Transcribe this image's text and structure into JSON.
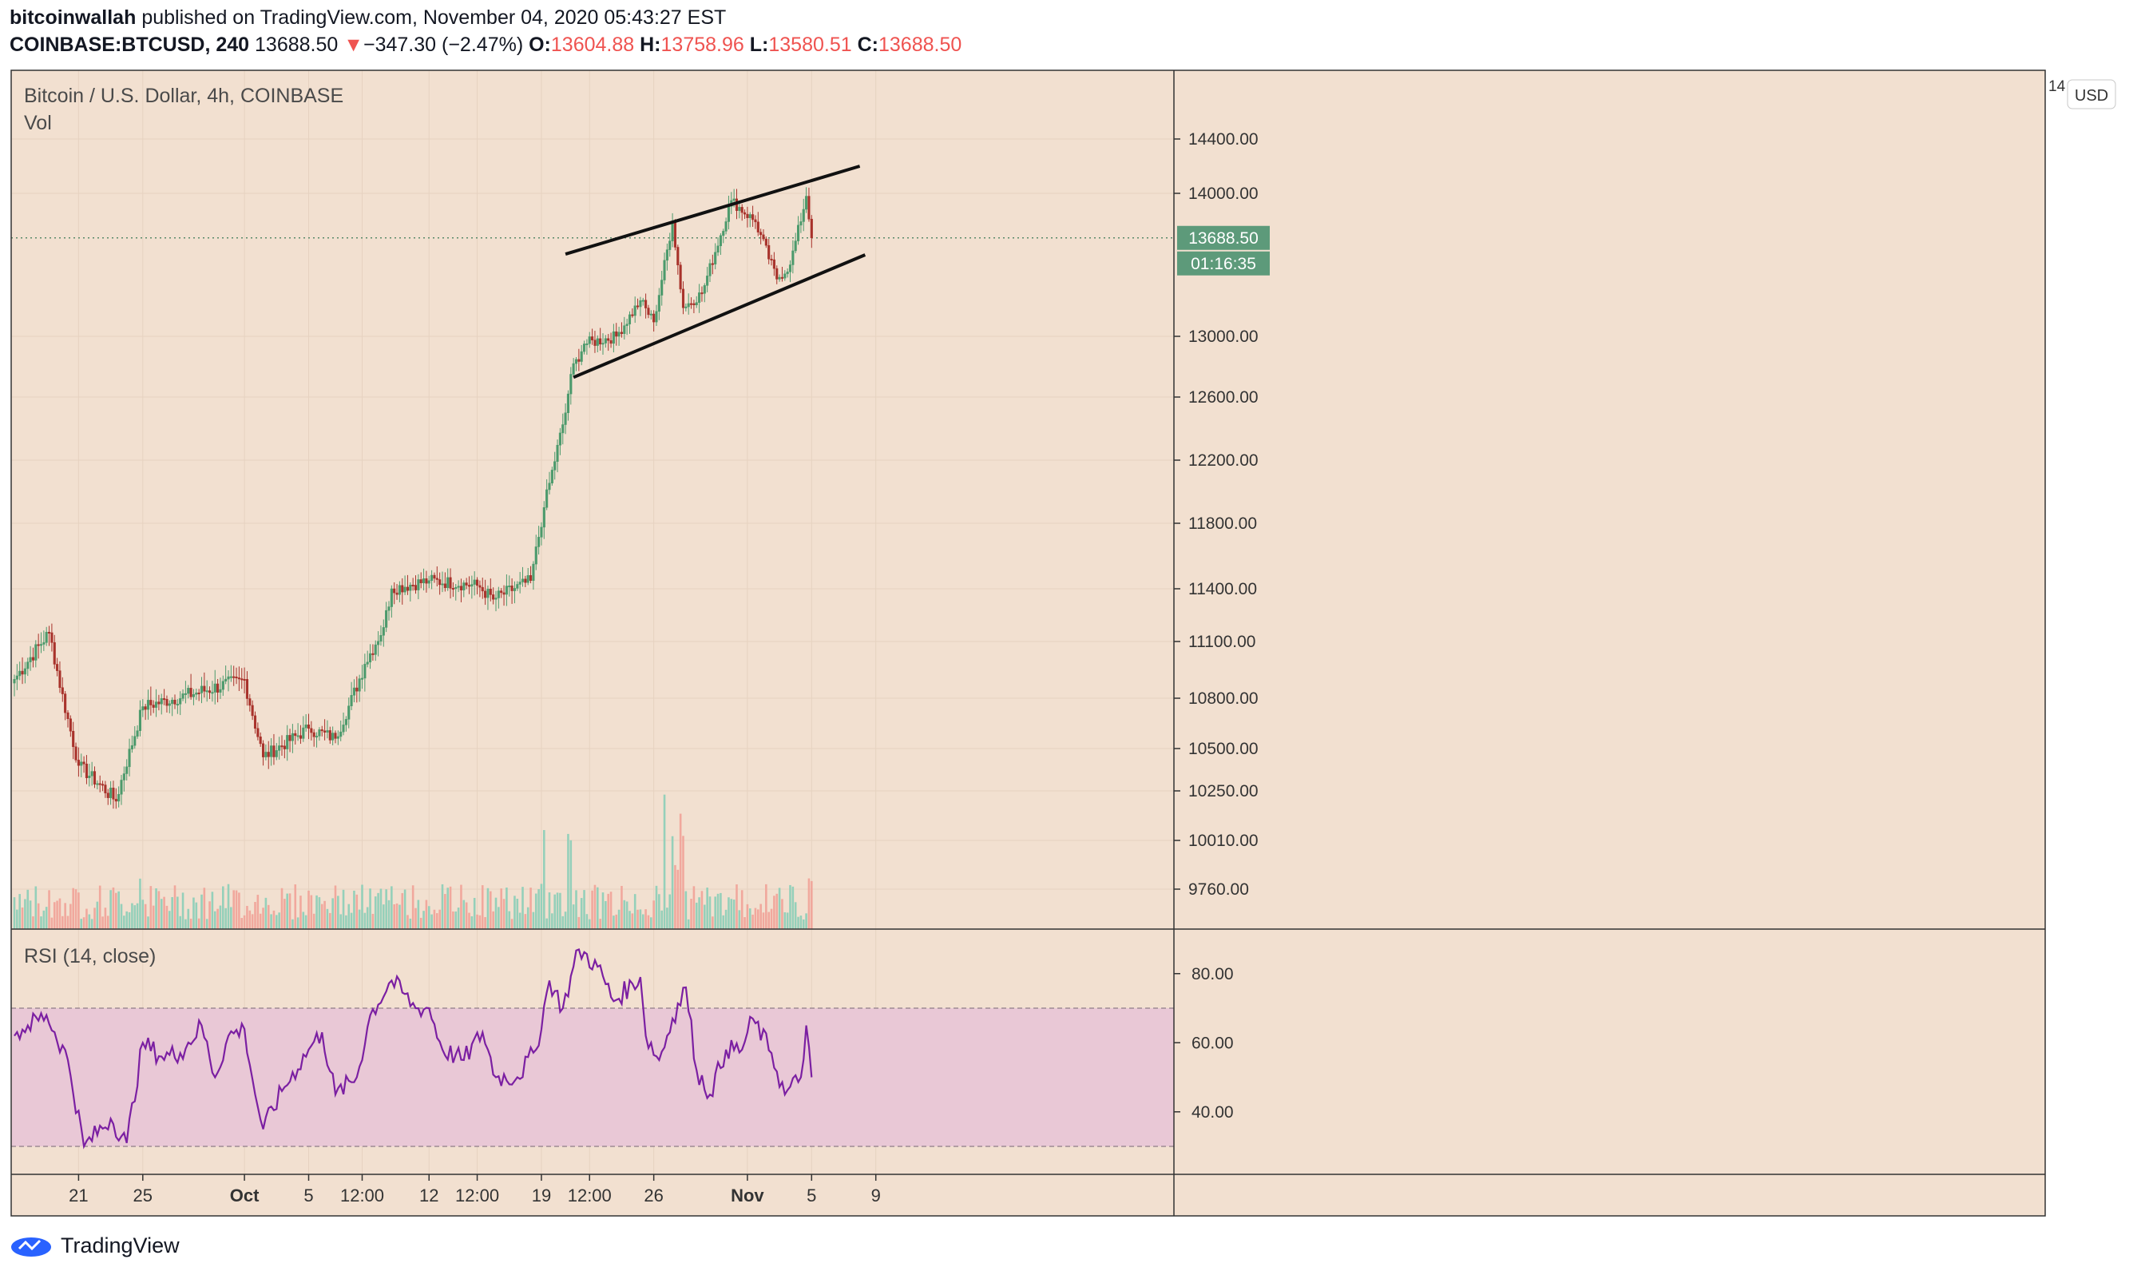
{
  "header": {
    "publisher": "bitcoinwallah",
    "published_text": "published on TradingView.com, November 04, 2020 05:43:27 EST",
    "symbol": "COINBASE:BTCUSD, 240",
    "price": "13688.50",
    "change_arrow": "▼",
    "change": "−347.30 (−2.47%)",
    "o_label": "O:",
    "o_value": "13604.88",
    "h_label": "H:",
    "h_value": "13758.96",
    "l_label": "L:",
    "l_value": "13580.51",
    "c_label": "C:",
    "c_value": "13688.50"
  },
  "footer": {
    "brand": "TradingView"
  },
  "colors": {
    "background": "#f2e0d0",
    "up": "#26a69a",
    "down": "#ef5350",
    "candle_up": "#4c9a6c",
    "candle_down": "#a8322b",
    "rsi_line": "#7b1fa2",
    "rsi_band": "#e9c8d6",
    "price_label": "#5d9a7a"
  },
  "chart_data": {
    "type": "candlestick",
    "title": "Bitcoin / U.S. Dollar, 4h, COINBASE",
    "subtitle": "Vol",
    "currency": "USD",
    "last_price_label": "13688.50",
    "countdown_label": "01:16:35",
    "y_ticks": [
      "14400.00",
      "14000.00",
      "13000.00",
      "12600.00",
      "12200.00",
      "11800.00",
      "11400.00",
      "11100.00",
      "10800.00",
      "10500.00",
      "10250.00",
      "10010.00",
      "9760.00"
    ],
    "y_tick_values": [
      14400,
      14000,
      13000,
      12600,
      12200,
      11800,
      11400,
      11100,
      10800,
      10500,
      10250,
      10010,
      9760
    ],
    "x_labels": [
      "21",
      "25",
      "Oct",
      "5",
      "12:00",
      "12",
      "12:00",
      "19",
      "12:00",
      "26",
      "Nov",
      "5",
      "9"
    ],
    "x_label_bars": [
      24,
      48,
      86,
      110,
      130,
      155,
      173,
      197,
      215,
      239,
      274,
      298,
      322
    ],
    "key_candles": [
      {
        "bar": 0,
        "price": 10900
      },
      {
        "bar": 13,
        "price": 11150
      },
      {
        "bar": 24,
        "price": 10400
      },
      {
        "bar": 38,
        "price": 10200
      },
      {
        "bar": 48,
        "price": 10750
      },
      {
        "bar": 86,
        "price": 10900
      },
      {
        "bar": 93,
        "price": 10450
      },
      {
        "bar": 110,
        "price": 10620
      },
      {
        "bar": 120,
        "price": 10560
      },
      {
        "bar": 131,
        "price": 10980
      },
      {
        "bar": 138,
        "price": 11180
      },
      {
        "bar": 141,
        "price": 11400
      },
      {
        "bar": 155,
        "price": 11450
      },
      {
        "bar": 173,
        "price": 11420
      },
      {
        "bar": 179,
        "price": 11340
      },
      {
        "bar": 193,
        "price": 11450
      },
      {
        "bar": 198,
        "price": 11900
      },
      {
        "bar": 206,
        "price": 12500
      },
      {
        "bar": 208,
        "price": 12750
      },
      {
        "bar": 213,
        "price": 12950
      },
      {
        "bar": 225,
        "price": 13000
      },
      {
        "bar": 234,
        "price": 13250
      },
      {
        "bar": 239,
        "price": 13100
      },
      {
        "bar": 246,
        "price": 13800
      },
      {
        "bar": 250,
        "price": 13200
      },
      {
        "bar": 257,
        "price": 13300
      },
      {
        "bar": 268,
        "price": 13950
      },
      {
        "bar": 277,
        "price": 13800
      },
      {
        "bar": 285,
        "price": 13400
      },
      {
        "bar": 290,
        "price": 13500
      },
      {
        "bar": 296,
        "price": 13980
      },
      {
        "bar": 298,
        "price": 13688.5
      }
    ],
    "last_bar": 298,
    "total_bars": 334,
    "trendlines": [
      {
        "name": "channel-upper",
        "from": {
          "bar": 206,
          "price": 13575
        },
        "to": {
          "bar": 316,
          "price": 14200
        }
      },
      {
        "name": "channel-lower",
        "from": {
          "bar": 209,
          "price": 12730
        },
        "to": {
          "bar": 318,
          "price": 13570
        }
      }
    ],
    "rsi": {
      "label": "RSI (14, close)",
      "y_ticks": [
        "80.00",
        "60.00",
        "40.00"
      ],
      "y_tick_values": [
        80,
        60,
        40
      ],
      "band": [
        30,
        70
      ],
      "keypoints": [
        {
          "bar": 0,
          "v": 62
        },
        {
          "bar": 5,
          "v": 65
        },
        {
          "bar": 12,
          "v": 68
        },
        {
          "bar": 20,
          "v": 55
        },
        {
          "bar": 26,
          "v": 30
        },
        {
          "bar": 36,
          "v": 38
        },
        {
          "bar": 42,
          "v": 31
        },
        {
          "bar": 48,
          "v": 60
        },
        {
          "bar": 55,
          "v": 56
        },
        {
          "bar": 62,
          "v": 57
        },
        {
          "bar": 70,
          "v": 65
        },
        {
          "bar": 75,
          "v": 50
        },
        {
          "bar": 80,
          "v": 62
        },
        {
          "bar": 86,
          "v": 64
        },
        {
          "bar": 90,
          "v": 45
        },
        {
          "bar": 93,
          "v": 35
        },
        {
          "bar": 100,
          "v": 46
        },
        {
          "bar": 110,
          "v": 58
        },
        {
          "bar": 115,
          "v": 63
        },
        {
          "bar": 120,
          "v": 45
        },
        {
          "bar": 128,
          "v": 50
        },
        {
          "bar": 133,
          "v": 68
        },
        {
          "bar": 141,
          "v": 78
        },
        {
          "bar": 150,
          "v": 70
        },
        {
          "bar": 155,
          "v": 70
        },
        {
          "bar": 160,
          "v": 58
        },
        {
          "bar": 168,
          "v": 55
        },
        {
          "bar": 175,
          "v": 63
        },
        {
          "bar": 180,
          "v": 50
        },
        {
          "bar": 188,
          "v": 50
        },
        {
          "bar": 195,
          "v": 58
        },
        {
          "bar": 200,
          "v": 78
        },
        {
          "bar": 205,
          "v": 70
        },
        {
          "bar": 211,
          "v": 87
        },
        {
          "bar": 218,
          "v": 82
        },
        {
          "bar": 224,
          "v": 72
        },
        {
          "bar": 234,
          "v": 79
        },
        {
          "bar": 236,
          "v": 62
        },
        {
          "bar": 241,
          "v": 55
        },
        {
          "bar": 246,
          "v": 67
        },
        {
          "bar": 251,
          "v": 76
        },
        {
          "bar": 255,
          "v": 52
        },
        {
          "bar": 260,
          "v": 45
        },
        {
          "bar": 266,
          "v": 58
        },
        {
          "bar": 272,
          "v": 58
        },
        {
          "bar": 276,
          "v": 67
        },
        {
          "bar": 283,
          "v": 57
        },
        {
          "bar": 288,
          "v": 45
        },
        {
          "bar": 294,
          "v": 50
        },
        {
          "bar": 296,
          "v": 65
        },
        {
          "bar": 298,
          "v": 50
        }
      ]
    }
  }
}
